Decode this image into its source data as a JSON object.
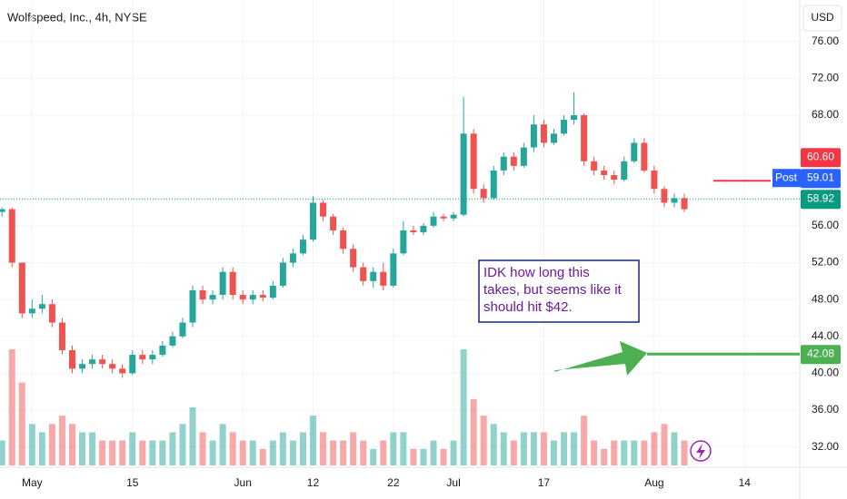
{
  "chart_data": {
    "type": "candlestick",
    "title": "Wolfspeed, Inc., 4h, NYSE",
    "currency": "USD",
    "up_color": "#26a69a",
    "down_color": "#ef5350",
    "x": [
      -3,
      -2,
      -1,
      0,
      1,
      2,
      3,
      4,
      5,
      6,
      7,
      8,
      9,
      10,
      11,
      12,
      13,
      14,
      15,
      16,
      17,
      18,
      19,
      20,
      21,
      22,
      23,
      24,
      25,
      26,
      27,
      28,
      29,
      30,
      31,
      32,
      33,
      34,
      35,
      36,
      37,
      38,
      39,
      40,
      41,
      42,
      43,
      44,
      45,
      46,
      47,
      48,
      49,
      50,
      51,
      52,
      53,
      54,
      55,
      56,
      57,
      58,
      59,
      60,
      61,
      62,
      63,
      64,
      65
    ],
    "open": [
      57.5,
      57.8,
      52,
      46.5,
      47,
      47.5,
      45.5,
      42.5,
      40.5,
      41,
      41.5,
      41,
      40.5,
      40,
      42,
      41.5,
      42,
      43,
      44,
      45.5,
      49,
      48,
      48.5,
      51,
      48.5,
      48,
      48.5,
      48.2,
      49.5,
      52,
      53,
      54.5,
      58.5,
      57,
      55.5,
      53.5,
      51.5,
      50,
      51,
      49.5,
      53,
      55.5,
      55.3,
      56,
      57,
      56.8,
      57.2,
      66,
      60,
      59,
      62,
      63.5,
      62.5,
      64.5,
      67,
      65,
      66,
      67.5,
      68,
      63,
      62,
      61.5,
      61,
      63,
      65,
      62,
      60,
      58.5,
      59
    ],
    "high": [
      58,
      58,
      52,
      48,
      48.5,
      48,
      46,
      43,
      41.5,
      42,
      42,
      41.5,
      41,
      42.5,
      42.5,
      42.5,
      43.5,
      44.5,
      46,
      49.5,
      49.5,
      49,
      51.5,
      51.5,
      49,
      49,
      49,
      50,
      52.5,
      53.5,
      55,
      59.2,
      58.8,
      57.3,
      55.8,
      54,
      52,
      51.5,
      52,
      53.5,
      56.5,
      56,
      56.3,
      57.5,
      57.3,
      57.5,
      70,
      66.5,
      60.5,
      62.5,
      64,
      64,
      65,
      68,
      67.5,
      66.5,
      68,
      70.5,
      68.2,
      63.5,
      62.5,
      62,
      63.5,
      65.5,
      65.5,
      62.5,
      60.3,
      59.5,
      59.5
    ],
    "low": [
      57,
      51.5,
      46,
      46,
      46.5,
      45,
      42,
      40,
      40,
      40.5,
      40.5,
      40,
      39.5,
      39.8,
      41,
      41,
      41.8,
      42.8,
      43.8,
      45,
      47.5,
      47.5,
      48,
      48,
      47.5,
      47.5,
      47.8,
      48,
      49.3,
      51.5,
      52.8,
      54.3,
      56.5,
      55,
      53,
      51,
      49.5,
      49.3,
      49,
      49.3,
      52.8,
      55,
      55,
      55.8,
      56.5,
      56.5,
      57,
      59.5,
      58.5,
      58.8,
      61.5,
      62,
      62.3,
      64,
      64.5,
      64.8,
      65.8,
      67,
      62.5,
      61.5,
      61,
      60.5,
      60.8,
      62.8,
      61.8,
      59.5,
      58,
      58,
      57.5
    ],
    "close": [
      57.8,
      52,
      46.5,
      47,
      47.5,
      45.5,
      42.5,
      40.5,
      41,
      41.5,
      41,
      40.5,
      40,
      42,
      41.5,
      42,
      43,
      44,
      45.5,
      49,
      48,
      48.5,
      51,
      48.5,
      48,
      48.5,
      48.2,
      49.5,
      52,
      53,
      54.5,
      58.5,
      57,
      55.5,
      53.5,
      51.5,
      50,
      51,
      49.5,
      53,
      55.5,
      55.3,
      56,
      57,
      56.8,
      57.2,
      66,
      60,
      59,
      62,
      63.5,
      62.5,
      64.5,
      67,
      65,
      66,
      67.5,
      68,
      63,
      62,
      61.5,
      61,
      63,
      65,
      62,
      60,
      58.5,
      59,
      57.8
    ],
    "volume": [
      3,
      14,
      10,
      5,
      4,
      5,
      6,
      5,
      4,
      4,
      3,
      3,
      3,
      4,
      3,
      3,
      3,
      4,
      5,
      7,
      4,
      3,
      5,
      4,
      3,
      3,
      2,
      3,
      4,
      3,
      4,
      6,
      4,
      3,
      3,
      4,
      3,
      2,
      3,
      4,
      4,
      2,
      2,
      3,
      2,
      3,
      14,
      8,
      6,
      5,
      4,
      3,
      4,
      4,
      4,
      3,
      4,
      4,
      6,
      3,
      2,
      3,
      3,
      3,
      3,
      4,
      5,
      4,
      3
    ],
    "volume_lim": [
      0,
      14
    ],
    "xlim": [
      -3.2,
      76.5
    ],
    "xticks": [
      {
        "value": 0,
        "label": "May"
      },
      {
        "value": 10,
        "label": "15"
      },
      {
        "value": 21,
        "label": "Jun"
      },
      {
        "value": 28,
        "label": "12"
      },
      {
        "value": 36,
        "label": "22"
      },
      {
        "value": 42,
        "label": "Jul"
      },
      {
        "value": 51,
        "label": "17"
      },
      {
        "value": 62,
        "label": "Aug"
      },
      {
        "value": 71,
        "label": "14"
      }
    ],
    "ylim": [
      29.8,
      80.5
    ],
    "yticks": [
      {
        "value": 76,
        "label": "76.00"
      },
      {
        "value": 72,
        "label": "72.00"
      },
      {
        "value": 68,
        "label": "68.00"
      },
      {
        "value": 56,
        "label": "56.00"
      },
      {
        "value": 52,
        "label": "52.00"
      },
      {
        "value": 48,
        "label": "48.00"
      },
      {
        "value": 44,
        "label": "44.00"
      },
      {
        "value": 40,
        "label": "40.00"
      },
      {
        "value": 36,
        "label": "36.00"
      },
      {
        "value": 32,
        "label": "32.00"
      }
    ],
    "price_labels": [
      {
        "value": 60.6,
        "label": "60.60",
        "color": "#f23645"
      },
      {
        "value": 59.01,
        "label": "59.01",
        "tag": "Post",
        "color": "#2962ff"
      },
      {
        "value": 58.92,
        "label": "58.92",
        "color": "#089981"
      },
      {
        "value": 42.08,
        "label": "42.08",
        "color": "#4caf50"
      }
    ],
    "annotation": [
      "IDK how long this",
      "takes, but seems like it",
      "should hit $42."
    ]
  }
}
